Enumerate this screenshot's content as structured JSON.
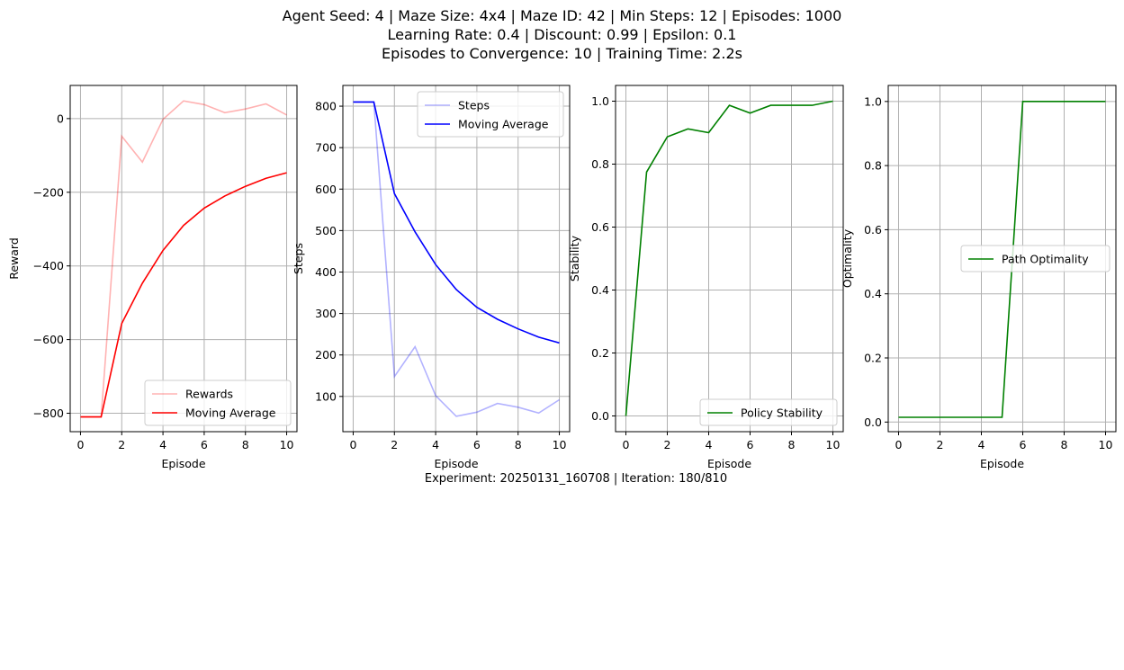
{
  "header": {
    "line1": "Agent Seed: 4 | Maze Size: 4x4 | Maze ID: 42 | Min Steps: 12 | Episodes: 1000",
    "line2": "Learning Rate: 0.4 | Discount: 0.99 | Epsilon: 0.1",
    "line3": "Episodes to Convergence: 10 | Training Time: 2.2s"
  },
  "footer": {
    "text": "Experiment: 20250131_160708 | Iteration: 180/810"
  },
  "chart_data": [
    {
      "type": "line",
      "xlabel": "Episode",
      "ylabel": "Reward",
      "xlim": [
        -0.5,
        10.5
      ],
      "ylim": [
        -850,
        90
      ],
      "xticks": [
        0,
        2,
        4,
        6,
        8,
        10
      ],
      "yticks": [
        -800,
        -600,
        -400,
        -200,
        0
      ],
      "grid": true,
      "legend_position": "lower-right",
      "x": [
        0,
        1,
        2,
        3,
        4,
        5,
        6,
        7,
        8,
        9,
        10
      ],
      "series": [
        {
          "name": "Rewards",
          "color": "#ff0000",
          "alpha": 0.3,
          "values": [
            -810,
            -810,
            -48,
            -118,
            -2,
            48,
            38,
            16,
            26,
            40,
            10
          ]
        },
        {
          "name": "Moving Average",
          "color": "#ff0000",
          "alpha": 1,
          "values": [
            -810,
            -810,
            -556,
            -447,
            -358,
            -290,
            -243,
            -210,
            -184,
            -162,
            -147
          ]
        }
      ]
    },
    {
      "type": "line",
      "xlabel": "Episode",
      "ylabel": "Steps",
      "xlim": [
        -0.5,
        10.5
      ],
      "ylim": [
        15,
        850
      ],
      "xticks": [
        0,
        2,
        4,
        6,
        8,
        10
      ],
      "yticks": [
        100,
        200,
        300,
        400,
        500,
        600,
        700,
        800
      ],
      "grid": true,
      "legend_position": "upper-right",
      "x": [
        0,
        1,
        2,
        3,
        4,
        5,
        6,
        7,
        8,
        9,
        10
      ],
      "series": [
        {
          "name": "Steps",
          "color": "#0000ff",
          "alpha": 0.3,
          "values": [
            810,
            810,
            148,
            220,
            102,
            52,
            62,
            83,
            74,
            60,
            92
          ]
        },
        {
          "name": "Moving Average",
          "color": "#0000ff",
          "alpha": 1,
          "values": [
            810,
            810,
            589,
            497,
            418,
            358,
            315,
            286,
            263,
            243,
            229
          ]
        }
      ]
    },
    {
      "type": "line",
      "xlabel": "Episode",
      "ylabel": "Stability",
      "xlim": [
        -0.5,
        10.5
      ],
      "ylim": [
        -0.05,
        1.05
      ],
      "xticks": [
        0,
        2,
        4,
        6,
        8,
        10
      ],
      "yticks": [
        0.0,
        0.2,
        0.4,
        0.6,
        0.8,
        1.0
      ],
      "grid": true,
      "legend_position": "lower-right",
      "x": [
        0,
        1,
        2,
        3,
        4,
        5,
        6,
        7,
        8,
        9,
        10
      ],
      "series": [
        {
          "name": "Policy Stability",
          "color": "#008000",
          "alpha": 1,
          "values": [
            0.0,
            0.775,
            0.887,
            0.912,
            0.9,
            0.987,
            0.962,
            0.987,
            0.987,
            0.987,
            1.0
          ]
        }
      ]
    },
    {
      "type": "line",
      "xlabel": "Episode",
      "ylabel": "Optimality",
      "xlim": [
        -0.5,
        10.5
      ],
      "ylim": [
        -0.03,
        1.05
      ],
      "xticks": [
        0,
        2,
        4,
        6,
        8,
        10
      ],
      "yticks": [
        0.0,
        0.2,
        0.4,
        0.6,
        0.8,
        1.0
      ],
      "grid": true,
      "legend_position": "center-right",
      "x": [
        0,
        1,
        2,
        3,
        4,
        5,
        6,
        7,
        8,
        9,
        10
      ],
      "series": [
        {
          "name": "Path Optimality",
          "color": "#008000",
          "alpha": 1,
          "values": [
            0.015,
            0.015,
            0.015,
            0.015,
            0.015,
            0.015,
            1.0,
            1.0,
            1.0,
            1.0,
            1.0
          ]
        }
      ]
    }
  ]
}
